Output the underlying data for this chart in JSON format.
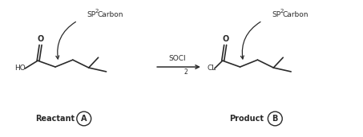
{
  "bg_color": "#ffffff",
  "text_color": "#2a2a2a",
  "fig_width": 4.53,
  "fig_height": 1.72,
  "dpi": 100,
  "reactant_label": "Reactant",
  "reactant_circle_label": "A",
  "product_label": "Product",
  "product_circle_label": "B",
  "sp2_label": "SP",
  "sp2_super": "2",
  "sp2_carbon": "Carbon",
  "reagent_label": "SOCl",
  "reagent_sub": "2",
  "ho_label": "HO",
  "o_label": "O",
  "cl_label": "CL"
}
